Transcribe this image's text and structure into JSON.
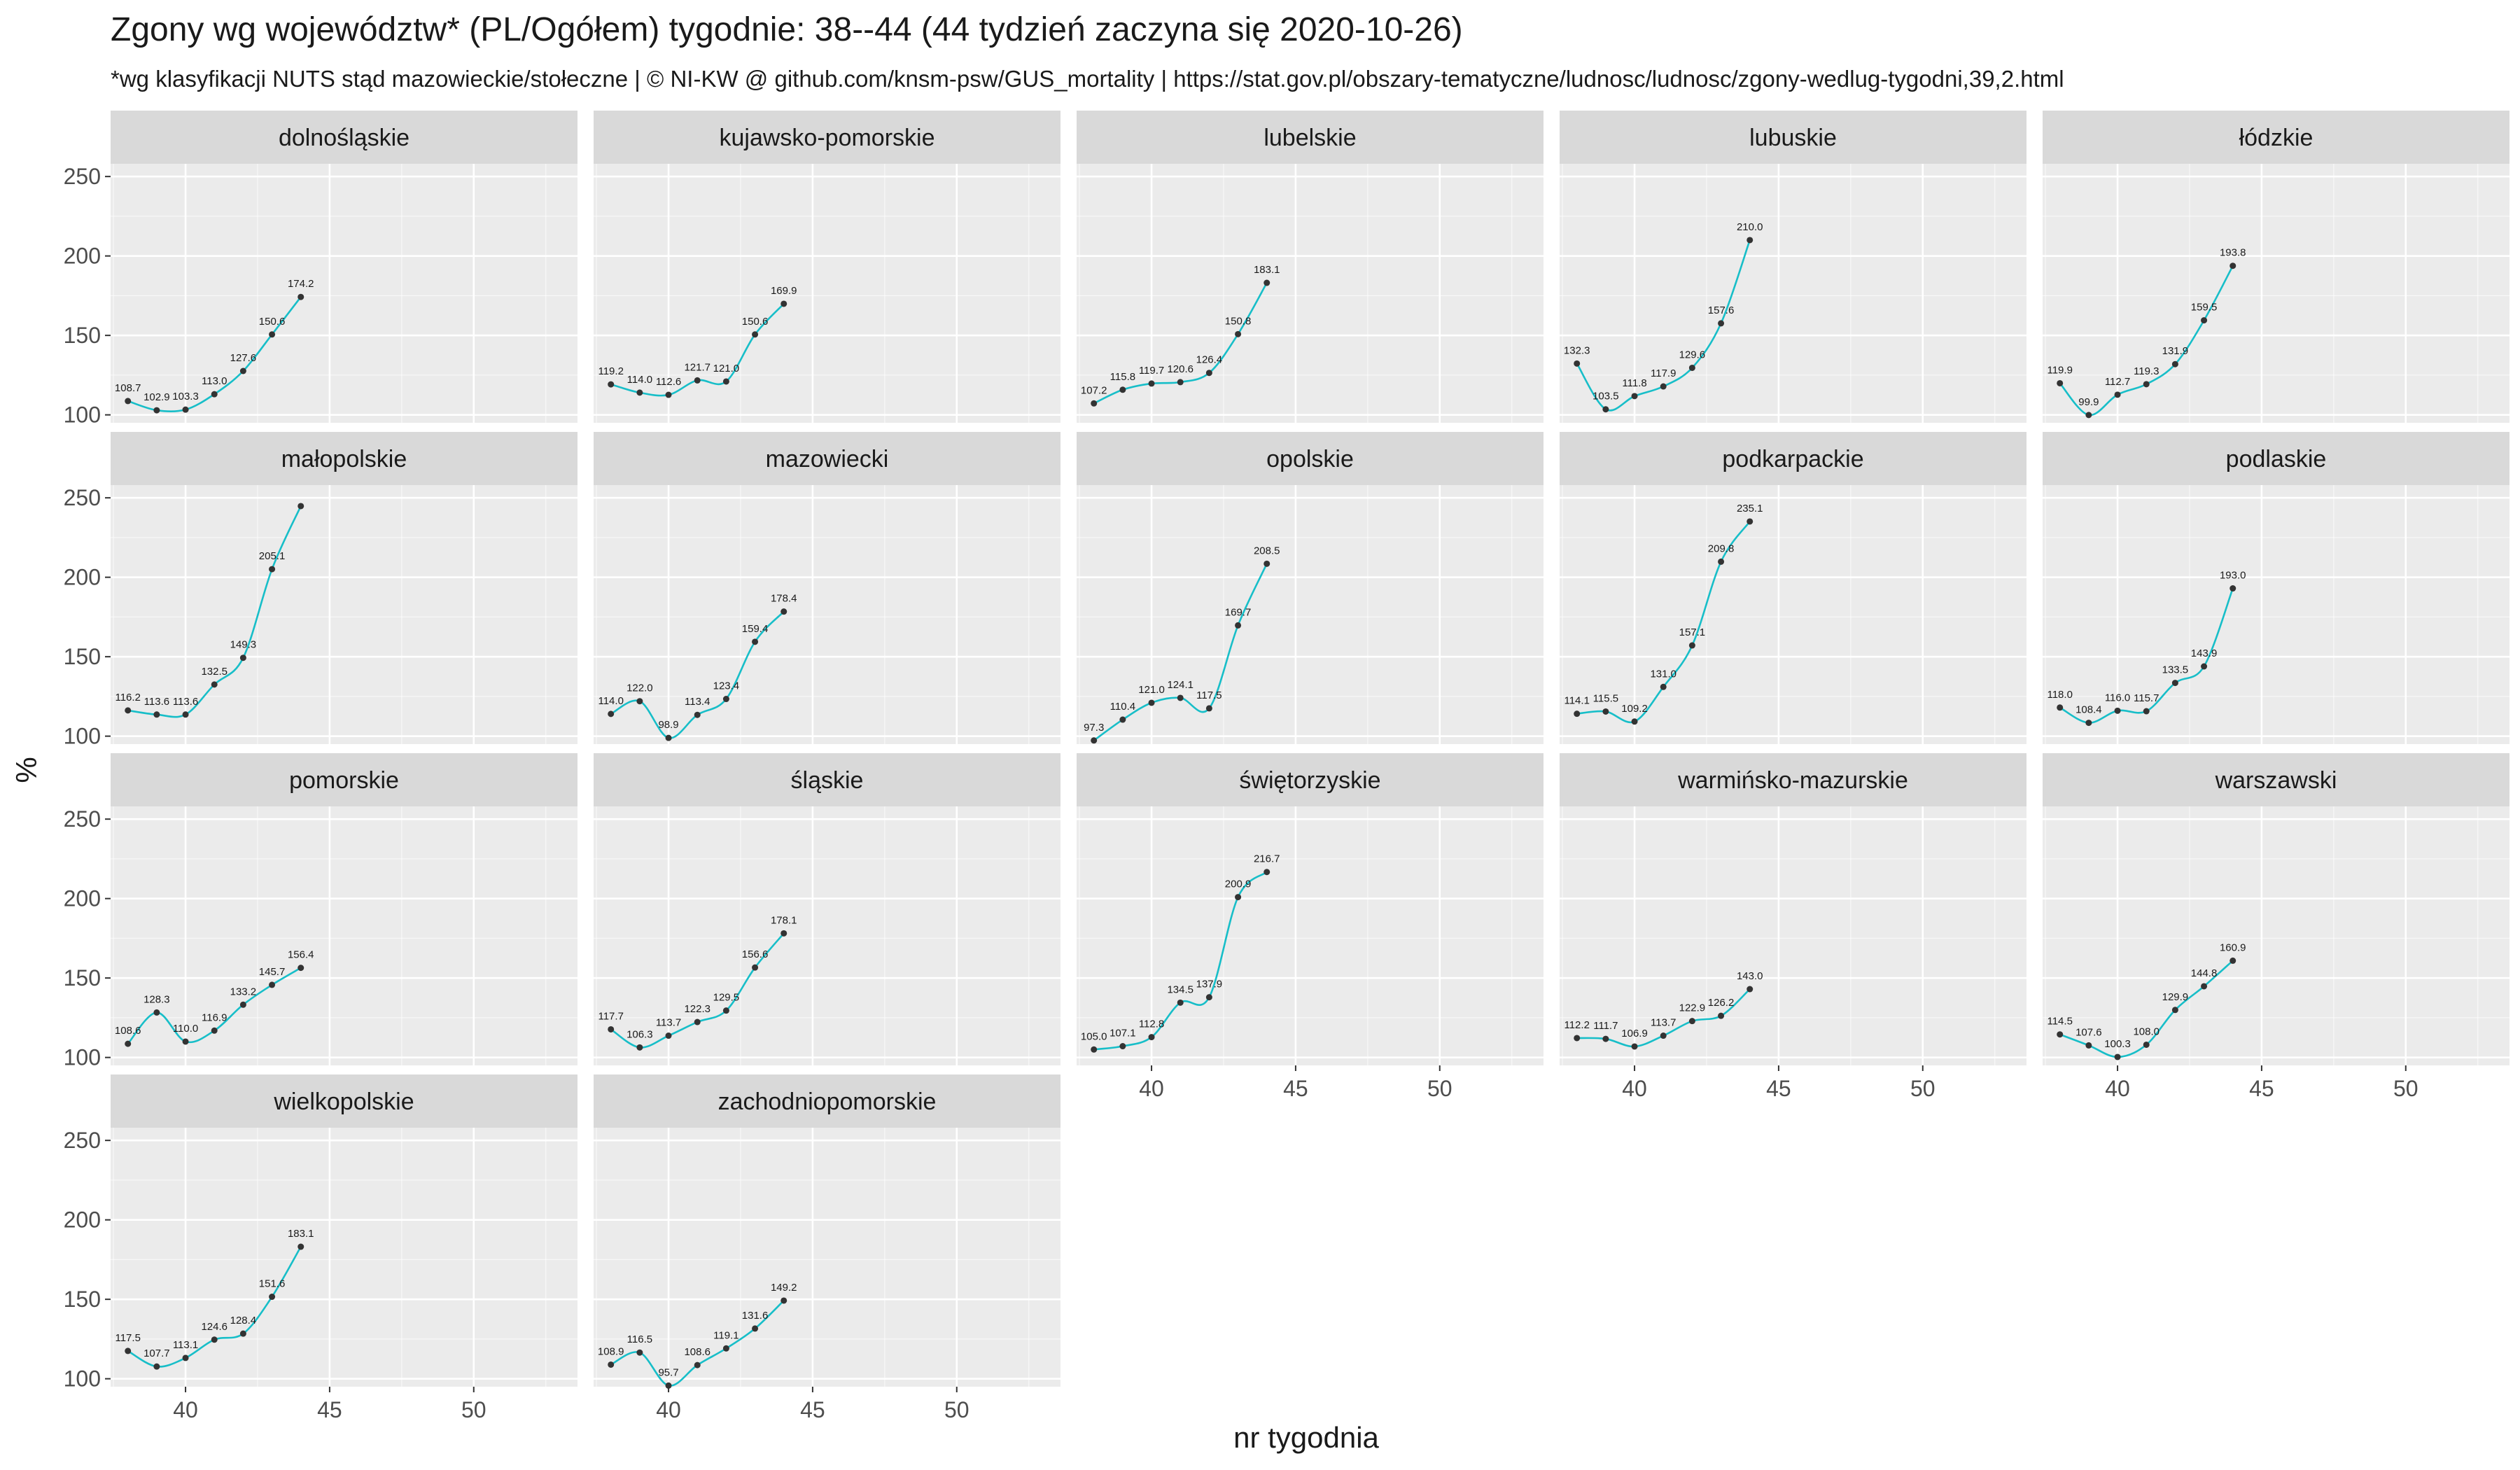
{
  "title": "Zgony wg województw* (PL/Ogółem) tygodnie: 38--44 (44 tydzień zaczyna się 2020-10-26)",
  "subtitle": "*wg klasyfikacji NUTS stąd mazowieckie/stołeczne | © NI-KW @ github.com/knsm-psw/GUS_mortality | https://stat.gov.pl/obszary-tematyczne/ludnosc/ludnosc/zgony-wedlug-tygodni,39,2.html",
  "colors": {
    "panel_bg": "#ebebeb",
    "strip_bg": "#d9d9d9",
    "grid": "#ffffff",
    "line": "#17bec8",
    "point": "#333333",
    "text": "#1a1a1a",
    "tick_text": "#4d4d4d"
  },
  "chart_data": {
    "type": "line",
    "facet_layout": "wrap 5 columns",
    "xlabel": "nr tygodnia",
    "ylabel": "%",
    "xlim": [
      37.4,
      53.6
    ],
    "ylim": [
      95,
      258
    ],
    "x_ticks": [
      40,
      45,
      50
    ],
    "y_ticks": [
      100,
      150,
      200,
      250
    ],
    "grid": true,
    "x": [
      38,
      39,
      40,
      41,
      42,
      43,
      44
    ],
    "panels": [
      {
        "name": "dolnośląskie",
        "values": [
          108.7,
          102.9,
          103.3,
          113.0,
          127.6,
          150.6,
          174.2
        ]
      },
      {
        "name": "kujawsko-pomorskie",
        "values": [
          119.2,
          114.0,
          112.6,
          121.7,
          121.0,
          150.6,
          169.9
        ]
      },
      {
        "name": "lubelskie",
        "values": [
          107.2,
          115.8,
          119.7,
          120.6,
          126.4,
          150.8,
          183.1
        ]
      },
      {
        "name": "lubuskie",
        "values": [
          132.3,
          103.5,
          111.8,
          117.9,
          129.6,
          157.6,
          210.0
        ]
      },
      {
        "name": "łódzkie",
        "values": [
          119.9,
          99.9,
          112.7,
          119.3,
          131.9,
          159.5,
          193.8
        ]
      },
      {
        "name": "małopolskie",
        "values": [
          116.2,
          113.6,
          113.6,
          132.5,
          149.3,
          205.1,
          244.8
        ]
      },
      {
        "name": "mazowiecki",
        "values": [
          114.0,
          122.0,
          98.9,
          113.4,
          123.4,
          159.4,
          178.4
        ]
      },
      {
        "name": "opolskie",
        "values": [
          97.3,
          110.4,
          121.0,
          124.1,
          117.5,
          169.7,
          208.5
        ]
      },
      {
        "name": "podkarpackie",
        "values": [
          114.1,
          115.5,
          109.2,
          131.0,
          157.1,
          209.8,
          235.1
        ]
      },
      {
        "name": "podlaskie",
        "values": [
          118.0,
          108.4,
          116.0,
          115.7,
          133.5,
          143.9,
          193.0
        ]
      },
      {
        "name": "pomorskie",
        "values": [
          108.6,
          128.3,
          110.0,
          116.9,
          133.2,
          145.7,
          156.4
        ]
      },
      {
        "name": "śląskie",
        "values": [
          117.7,
          106.3,
          113.7,
          122.3,
          129.5,
          156.6,
          178.1
        ]
      },
      {
        "name": "świętorzyskie",
        "values": [
          105.0,
          107.1,
          112.8,
          134.5,
          137.9,
          200.9,
          216.7
        ]
      },
      {
        "name": "warmińsko-mazurskie",
        "values": [
          112.2,
          111.7,
          106.9,
          113.7,
          122.9,
          126.2,
          143.0
        ]
      },
      {
        "name": "warszawski",
        "values": [
          114.5,
          107.6,
          100.3,
          108.0,
          129.9,
          144.8,
          160.9
        ]
      },
      {
        "name": "wielkopolskie",
        "values": [
          117.5,
          107.7,
          113.1,
          124.6,
          128.4,
          151.6,
          183.1
        ]
      },
      {
        "name": "zachodniopomorskie",
        "values": [
          108.9,
          116.5,
          95.7,
          108.6,
          119.1,
          131.6,
          149.2
        ]
      }
    ],
    "data_labels": [
      [
        "108.7",
        "102.9",
        "103.3",
        "113.0",
        "127.6",
        "150.6",
        "174.2"
      ],
      [
        "119.2",
        "114.0",
        "112.6",
        "121.7",
        "121.0",
        "150.6",
        "169.9"
      ],
      [
        "107.2",
        "115.8",
        "119.7",
        "120.6",
        "126.4",
        "150.8",
        "183.1"
      ],
      [
        "132.3",
        "103.5",
        "111.8",
        "117.9",
        "129.6",
        "157.6",
        "210.0"
      ],
      [
        "119.9",
        "99.9",
        "112.7",
        "119.3",
        "131.9",
        "159.5",
        "193.8"
      ],
      [
        "116.2",
        "113.6",
        "113.6",
        "132.5",
        "149.3",
        "205.1",
        ""
      ],
      [
        "114.0",
        "122.0",
        "98.9",
        "113.4",
        "123.4",
        "159.4",
        "178.4"
      ],
      [
        "97.3",
        "110.4",
        "121.0",
        "124.1",
        "117.5",
        "169.7",
        "208.5"
      ],
      [
        "114.1",
        "115.5",
        "109.2",
        "131.0",
        "157.1",
        "209.8",
        "235.1"
      ],
      [
        "118.0",
        "108.4",
        "116.0",
        "115.7",
        "133.5",
        "143.9",
        "193.0"
      ],
      [
        "108.6",
        "128.3",
        "110.0",
        "116.9",
        "133.2",
        "145.7",
        "156.4"
      ],
      [
        "117.7",
        "106.3",
        "113.7",
        "122.3",
        "129.5",
        "156.6",
        "178.1"
      ],
      [
        "105.0",
        "107.1",
        "112.8",
        "134.5",
        "137.9",
        "200.9",
        "216.7"
      ],
      [
        "112.2",
        "111.7",
        "106.9",
        "113.7",
        "122.9",
        "126.2",
        "143.0"
      ],
      [
        "114.5",
        "107.6",
        "100.3",
        "108.0",
        "129.9",
        "144.8",
        "160.9"
      ],
      [
        "117.5",
        "107.7",
        "113.1",
        "124.6",
        "128.4",
        "151.6",
        "183.1"
      ],
      [
        "108.9",
        "116.5",
        "95.7",
        "108.6",
        "119.1",
        "131.6",
        "149.2"
      ]
    ]
  }
}
